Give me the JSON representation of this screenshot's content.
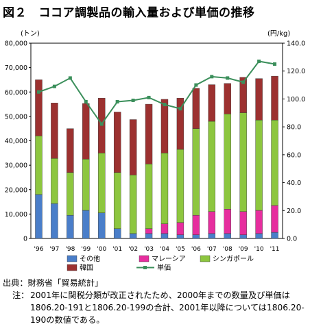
{
  "title": "図２　ココア調製品の輸入量および単価の推移",
  "left_unit": "(トン)",
  "right_unit": "(円/kg)",
  "source": "出典：財務省「貿易統計」",
  "note_label": "注：",
  "note": "2001年に関税分類が改正されたため、2000年までの数量及び単価は1806.20-191と1806.20-199の合計、2001年以降については1806.20-190の数値である。",
  "colors": {
    "その他": "#4a7ec9",
    "マレーシア": "#e62e9e",
    "シンガポール": "#8dc63f",
    "韓国": "#9c3130",
    "単価": "#3b8f5b"
  },
  "chart_data": {
    "type": "bar",
    "stacked": true,
    "categories": [
      "'96",
      "'97",
      "'98",
      "'99",
      "'00",
      "'01",
      "'02",
      "'03",
      "'04",
      "'05",
      "'06",
      "'07",
      "'08",
      "'09",
      "'10",
      "'11"
    ],
    "series": [
      {
        "name": "その他",
        "values": [
          18000,
          14300,
          9500,
          11500,
          10500,
          4000,
          2000,
          2000,
          2000,
          1500,
          1500,
          2000,
          2000,
          1500,
          2000,
          2500
        ]
      },
      {
        "name": "マレーシア",
        "values": [
          0,
          0,
          0,
          0,
          0,
          0,
          0,
          2000,
          4000,
          5000,
          8000,
          9000,
          10000,
          9500,
          9500,
          11000
        ]
      },
      {
        "name": "シンガポール",
        "values": [
          24000,
          18500,
          17500,
          21000,
          24500,
          23000,
          24000,
          26500,
          29000,
          30000,
          35500,
          37000,
          39000,
          40500,
          37000,
          35000
        ]
      },
      {
        "name": "韓国",
        "values": [
          23000,
          22700,
          18000,
          22800,
          22500,
          24800,
          22700,
          24500,
          22000,
          21000,
          16500,
          15000,
          12500,
          14500,
          17000,
          18000
        ]
      }
    ],
    "line_series": {
      "name": "単価",
      "axis": "right",
      "values": [
        105,
        109,
        115,
        98,
        82,
        98,
        99,
        101,
        96,
        93,
        110,
        116,
        115,
        112,
        127,
        125
      ]
    },
    "y_left": {
      "label": "(トン)",
      "min": 0,
      "max": 80000,
      "ticks": [
        "0",
        "10,000",
        "20,000",
        "30,000",
        "40,000",
        "50,000",
        "60,000",
        "70,000",
        "80,000"
      ]
    },
    "y_right": {
      "label": "(円/kg)",
      "min": 0,
      "max": 140,
      "ticks": [
        "0.0",
        "20.0",
        "40.0",
        "60.0",
        "80.0",
        "100.0",
        "120.0",
        "140.0"
      ]
    },
    "legend_position": "bottom",
    "grid": false
  }
}
